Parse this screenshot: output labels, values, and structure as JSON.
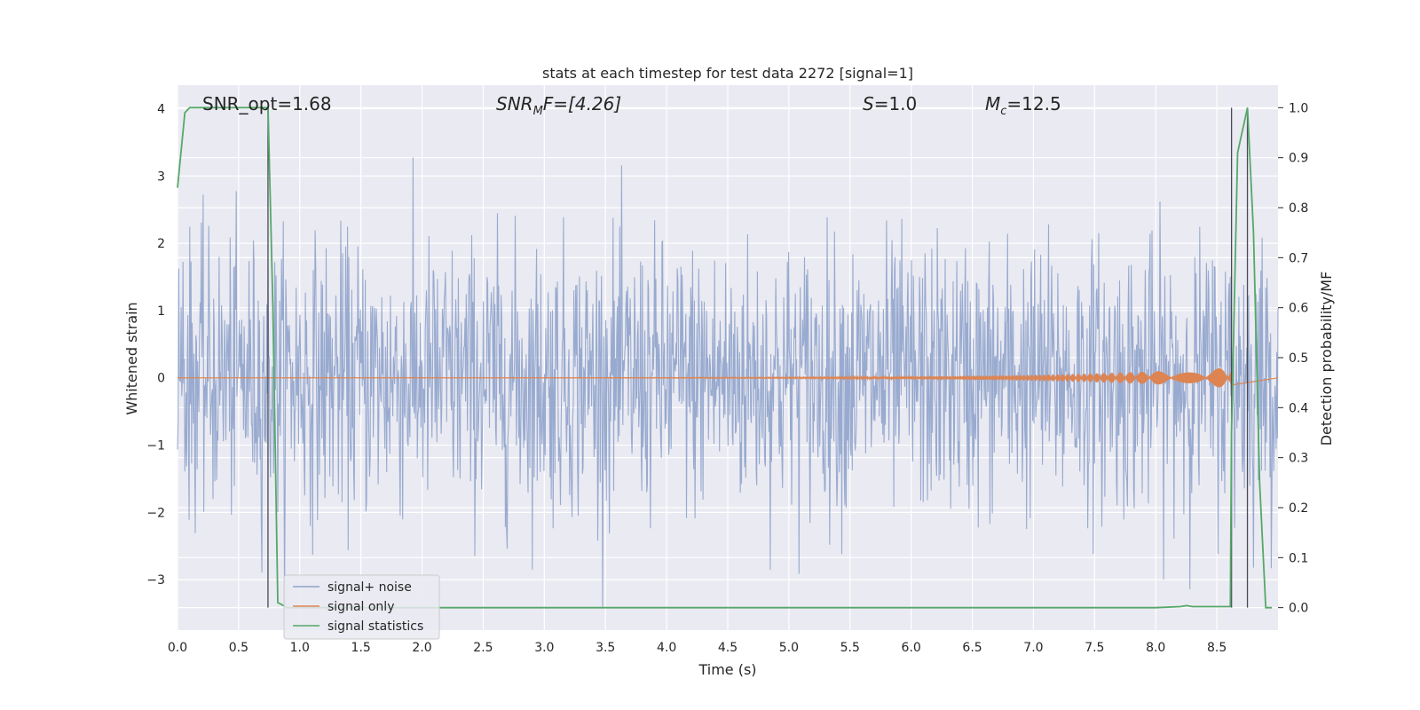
{
  "chart_data": {
    "type": "line",
    "title": "stats at each timestep for test data 2272 [signal=1]",
    "xlabel": "Time (s)",
    "ylabel": "Whitened strain",
    "y2label": "Detection probability/MF",
    "xlim": [
      0.0,
      9.0
    ],
    "ylim": [
      -3.75,
      4.35
    ],
    "y2lim": [
      -0.045,
      1.045
    ],
    "x_ticks": [
      "0.0",
      "0.5",
      "1.0",
      "1.5",
      "2.0",
      "2.5",
      "3.0",
      "3.5",
      "4.0",
      "4.5",
      "5.0",
      "5.5",
      "6.0",
      "6.5",
      "7.0",
      "7.5",
      "8.0",
      "8.5"
    ],
    "y_ticks": [
      "−3",
      "−2",
      "−1",
      "0",
      "1",
      "2",
      "3",
      "4"
    ],
    "y2_ticks": [
      "0.0",
      "0.1",
      "0.2",
      "0.3",
      "0.4",
      "0.5",
      "0.6",
      "0.7",
      "0.8",
      "0.9",
      "1.0"
    ],
    "grid": true,
    "legend_position": "lower-left",
    "annotations": {
      "snr_opt": "SNR_opt=1.68",
      "snr_mf_main": "SNR",
      "snr_mf_sub": "M",
      "snr_mf_rest": "F=[4.26]",
      "s_main": "S",
      "s_rest": "=1.0",
      "mc_main": "M",
      "mc_sub": "c",
      "mc_rest": "=12.5"
    },
    "vertical_lines_x": [
      0.74,
      8.62,
      8.75
    ],
    "series": [
      {
        "name": "signal+ noise",
        "color": "#8fa3cb",
        "description_stats": {
          "mean": 0.0,
          "std": 1.0,
          "n_points": 1800
        },
        "x_range": [
          0.0,
          9.0
        ]
      },
      {
        "name": "signal only",
        "color": "#dd8452",
        "chirp": {
          "start_amp": 0.003,
          "end_amp": 0.15,
          "x_end": 8.62
        }
      },
      {
        "name": "signal statistics",
        "color": "#55a868",
        "axis": "secondary",
        "x": [
          0.0,
          0.06,
          0.1,
          0.15,
          0.2,
          0.3,
          0.4,
          0.5,
          0.6,
          0.7,
          0.74,
          0.78,
          0.82,
          0.9,
          1.0,
          2.0,
          4.0,
          6.0,
          7.5,
          8.0,
          8.2,
          8.25,
          8.3,
          8.5,
          8.61,
          8.62,
          8.67,
          8.75,
          8.8,
          8.85,
          8.9,
          8.95
        ],
        "y": [
          0.84,
          0.99,
          1.0,
          1.0,
          1.0,
          1.0,
          1.0,
          1.0,
          1.0,
          1.0,
          1.0,
          0.6,
          0.01,
          0.0,
          0.0,
          0.0,
          0.0,
          0.0,
          0.0,
          0.0,
          0.002,
          0.004,
          0.002,
          0.002,
          0.002,
          0.35,
          0.91,
          1.0,
          0.75,
          0.25,
          0.0,
          0.0
        ]
      }
    ]
  }
}
